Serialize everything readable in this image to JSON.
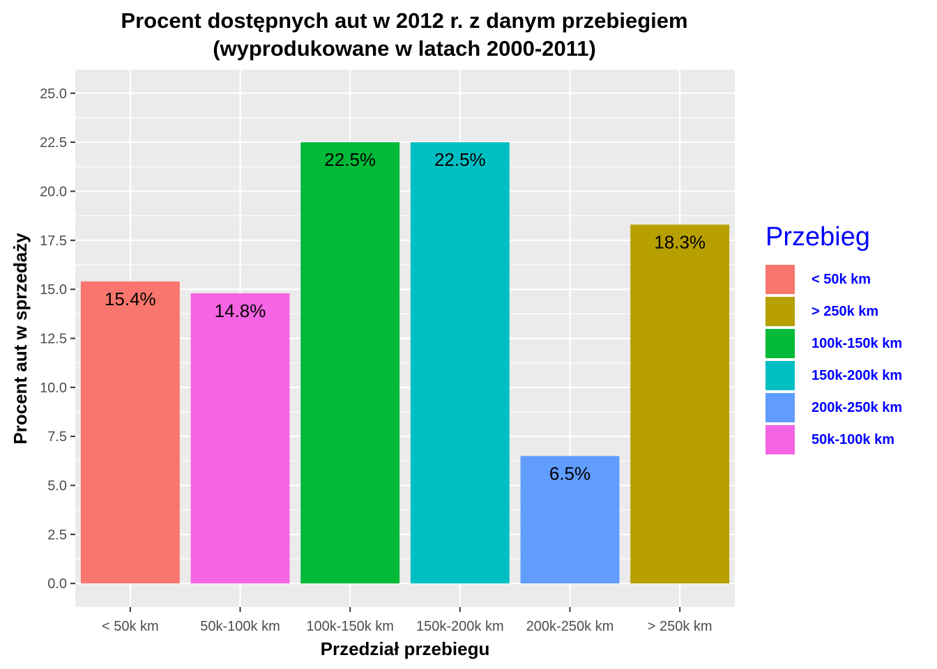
{
  "chart_data": {
    "type": "bar",
    "title": [
      "Procent dostępnych aut w 2012 r. z danym przebiegiem",
      "(wyprodukowane w latach 2000-2011)"
    ],
    "xlabel": "Przedział przebiegu",
    "ylabel": "Procent aut w sprzedaży",
    "categories": [
      "< 50k km",
      "50k-100k km",
      "100k-150k km",
      "150k-200k km",
      "200k-250k km",
      "> 250k km"
    ],
    "values": [
      15.4,
      14.8,
      22.5,
      22.5,
      6.5,
      18.3
    ],
    "data_labels": [
      "15.4%",
      "14.8%",
      "22.5%",
      "22.5%",
      "6.5%",
      "18.3%"
    ],
    "bar_colors": [
      "#F8766D",
      "#F564E3",
      "#00BA38",
      "#00BFC4",
      "#619CFF",
      "#B79F00"
    ],
    "ylim": [
      -1.2,
      26.2
    ],
    "yticks": [
      0.0,
      2.5,
      5.0,
      7.5,
      10.0,
      12.5,
      15.0,
      17.5,
      20.0,
      22.5,
      25.0
    ],
    "ytick_labels": [
      "0.0",
      "2.5",
      "5.0",
      "7.5",
      "10.0",
      "12.5",
      "15.0",
      "17.5",
      "20.0",
      "22.5",
      "25.0"
    ],
    "grid": true,
    "legend": {
      "title": "Przebieg",
      "placement": "right",
      "items": [
        {
          "label": "< 50k km",
          "color": "#F8766D"
        },
        {
          "label": "> 250k km",
          "color": "#B79F00"
        },
        {
          "label": "100k-150k km",
          "color": "#00BA38"
        },
        {
          "label": "150k-200k km",
          "color": "#00BFC4"
        },
        {
          "label": "200k-250k km",
          "color": "#619CFF"
        },
        {
          "label": "50k-100k km",
          "color": "#F564E3"
        }
      ]
    }
  }
}
